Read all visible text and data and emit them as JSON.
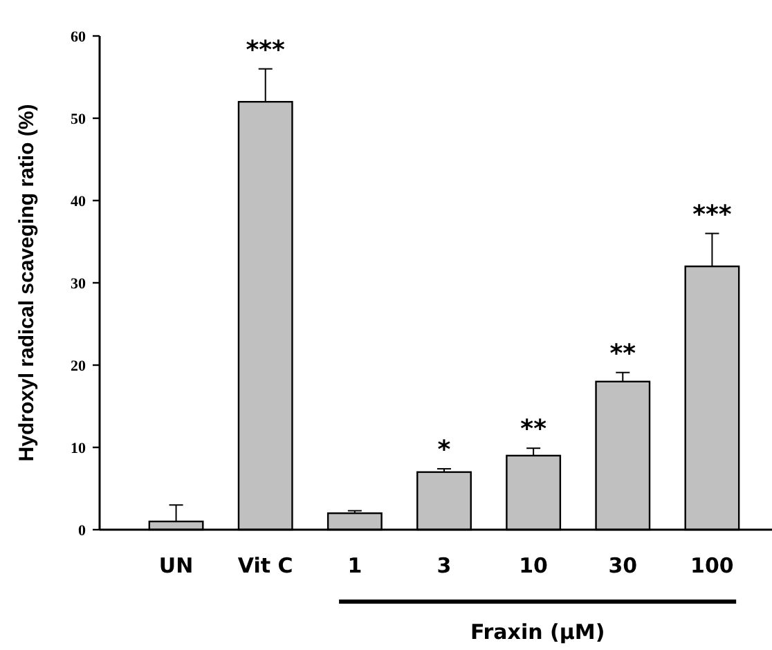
{
  "chart_data": {
    "type": "bar",
    "ylabel": "Hydroxyl radical scaveging ratio (%)",
    "xlabel": "Fraxin  (μM)",
    "categories": [
      "UN",
      "Vit C",
      "1",
      "3",
      "10",
      "30",
      "100"
    ],
    "values": [
      1,
      52,
      2,
      7,
      9,
      18,
      32
    ],
    "errors": [
      [
        1,
        3
      ],
      [
        52,
        56
      ],
      [
        2,
        2.3
      ],
      [
        7,
        7.4
      ],
      [
        9,
        9.9
      ],
      [
        18,
        19.1
      ],
      [
        32,
        36
      ]
    ],
    "color": "#c0c0c0",
    "ylim": [
      0,
      60
    ],
    "yticks": [
      0,
      10,
      20,
      30,
      40,
      50,
      60
    ],
    "grid": false,
    "annotations": [
      {
        "text": "***",
        "x": "Vit C",
        "y": 56
      },
      {
        "text": "*",
        "x": "3",
        "y": 7.4
      },
      {
        "text": "**",
        "x": "10",
        "y": 9.9
      },
      {
        "text": "**",
        "x": "30",
        "y": 19.1
      },
      {
        "text": "***",
        "x": "100",
        "y": 36
      }
    ]
  }
}
